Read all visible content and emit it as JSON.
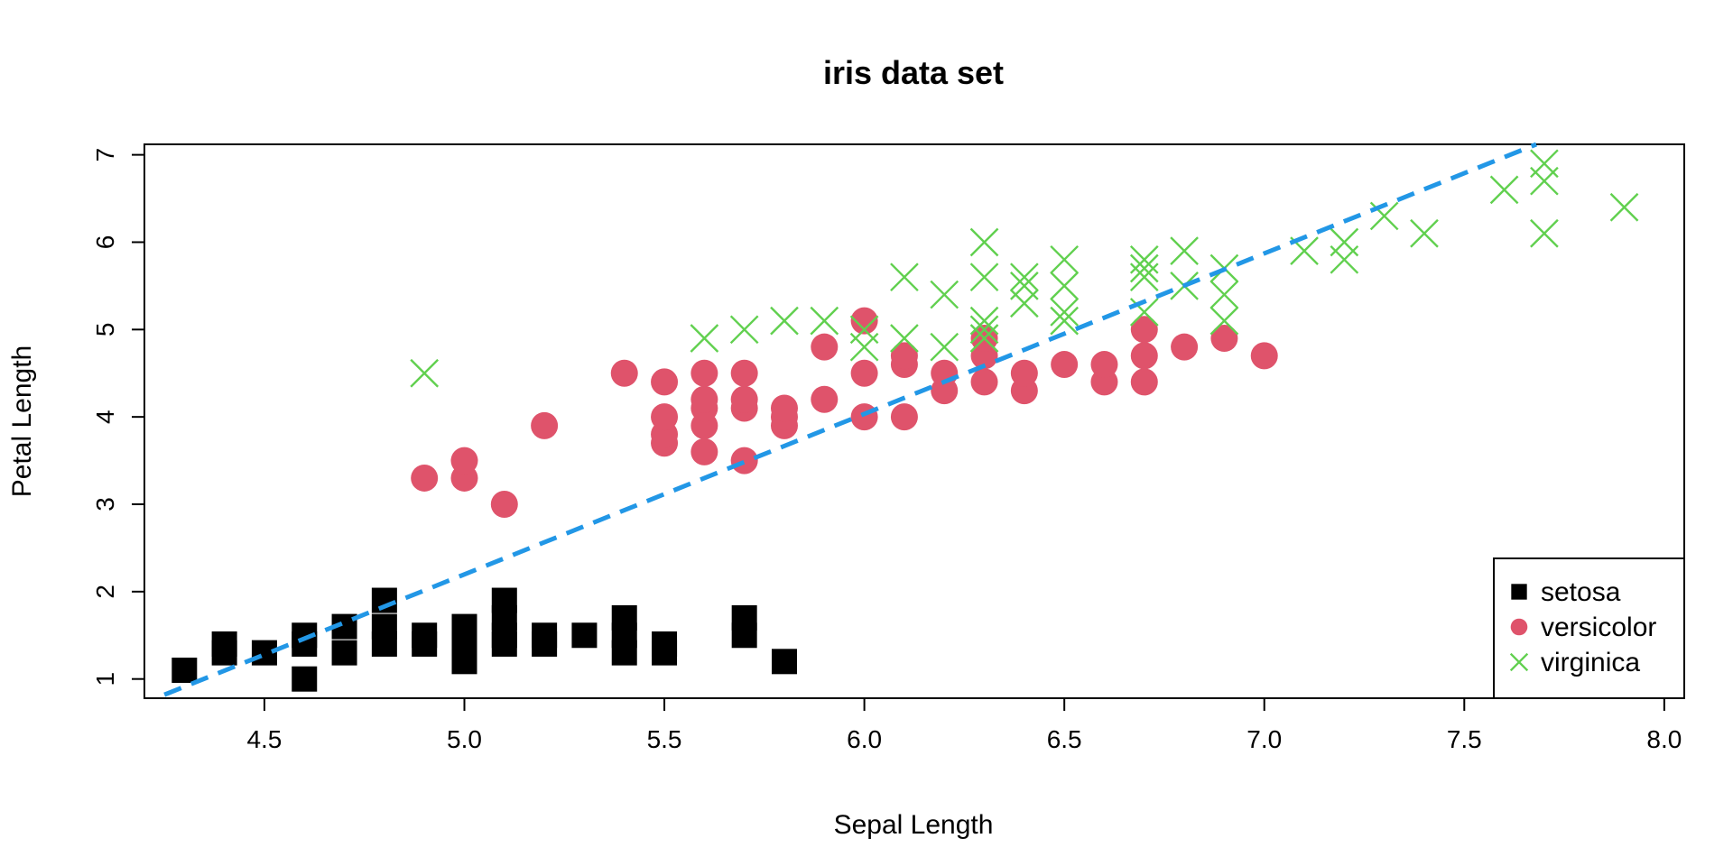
{
  "chart_data": {
    "type": "scatter",
    "title": "iris data set",
    "xlabel": "Sepal Length",
    "ylabel": "Petal Length",
    "xlim": [
      4.2,
      8.05
    ],
    "ylim": [
      0.78,
      7.12
    ],
    "xticks": [
      "4.5",
      "5.0",
      "5.5",
      "6.0",
      "6.5",
      "7.0",
      "7.5",
      "8.0"
    ],
    "yticks": [
      "1",
      "2",
      "3",
      "4",
      "5",
      "6",
      "7"
    ],
    "grid": false,
    "legend_position": "bottom-right",
    "series": [
      {
        "name": "setosa",
        "marker": "square",
        "color": "#000000",
        "points": [
          [
            4.3,
            1.1
          ],
          [
            4.4,
            1.3
          ],
          [
            4.4,
            1.4
          ],
          [
            4.5,
            1.3
          ],
          [
            4.6,
            1.0
          ],
          [
            4.6,
            1.4
          ],
          [
            4.6,
            1.5
          ],
          [
            4.7,
            1.3
          ],
          [
            4.7,
            1.6
          ],
          [
            4.8,
            1.4
          ],
          [
            4.8,
            1.6
          ],
          [
            4.8,
            1.9
          ],
          [
            4.9,
            1.4
          ],
          [
            4.9,
            1.5
          ],
          [
            5.0,
            1.2
          ],
          [
            5.0,
            1.4
          ],
          [
            5.0,
            1.6
          ],
          [
            5.1,
            1.4
          ],
          [
            5.1,
            1.5
          ],
          [
            5.1,
            1.7
          ],
          [
            5.1,
            1.9
          ],
          [
            5.2,
            1.4
          ],
          [
            5.2,
            1.5
          ],
          [
            5.3,
            1.5
          ],
          [
            5.4,
            1.3
          ],
          [
            5.4,
            1.5
          ],
          [
            5.4,
            1.7
          ],
          [
            5.5,
            1.3
          ],
          [
            5.5,
            1.4
          ],
          [
            5.7,
            1.5
          ],
          [
            5.7,
            1.7
          ],
          [
            5.8,
            1.2
          ]
        ]
      },
      {
        "name": "versicolor",
        "marker": "circle",
        "color": "#DF536B",
        "points": [
          [
            4.9,
            3.3
          ],
          [
            5.0,
            3.3
          ],
          [
            5.0,
            3.5
          ],
          [
            5.1,
            3.0
          ],
          [
            5.2,
            3.9
          ],
          [
            5.4,
            4.5
          ],
          [
            5.5,
            3.7
          ],
          [
            5.5,
            3.8
          ],
          [
            5.5,
            4.0
          ],
          [
            5.5,
            4.4
          ],
          [
            5.6,
            3.6
          ],
          [
            5.6,
            3.9
          ],
          [
            5.6,
            4.1
          ],
          [
            5.6,
            4.2
          ],
          [
            5.6,
            4.5
          ],
          [
            5.7,
            3.5
          ],
          [
            5.7,
            4.1
          ],
          [
            5.7,
            4.2
          ],
          [
            5.7,
            4.5
          ],
          [
            5.8,
            3.9
          ],
          [
            5.8,
            4.0
          ],
          [
            5.8,
            4.1
          ],
          [
            5.9,
            4.2
          ],
          [
            5.9,
            4.8
          ],
          [
            6.0,
            4.0
          ],
          [
            6.0,
            4.5
          ],
          [
            6.0,
            5.1
          ],
          [
            6.1,
            4.0
          ],
          [
            6.1,
            4.6
          ],
          [
            6.1,
            4.7
          ],
          [
            6.2,
            4.3
          ],
          [
            6.2,
            4.5
          ],
          [
            6.3,
            4.4
          ],
          [
            6.3,
            4.7
          ],
          [
            6.3,
            4.9
          ],
          [
            6.4,
            4.3
          ],
          [
            6.4,
            4.5
          ],
          [
            6.5,
            4.6
          ],
          [
            6.6,
            4.4
          ],
          [
            6.6,
            4.6
          ],
          [
            6.7,
            4.4
          ],
          [
            6.7,
            4.7
          ],
          [
            6.7,
            5.0
          ],
          [
            6.8,
            4.8
          ],
          [
            6.9,
            4.9
          ],
          [
            7.0,
            4.7
          ]
        ]
      },
      {
        "name": "virginica",
        "marker": "cross",
        "color": "#61D04F",
        "points": [
          [
            4.9,
            4.5
          ],
          [
            5.6,
            4.9
          ],
          [
            5.7,
            5.0
          ],
          [
            5.8,
            5.1
          ],
          [
            5.9,
            5.1
          ],
          [
            6.0,
            4.8
          ],
          [
            6.0,
            5.0
          ],
          [
            6.1,
            4.9
          ],
          [
            6.1,
            5.6
          ],
          [
            6.2,
            4.8
          ],
          [
            6.2,
            5.4
          ],
          [
            6.3,
            4.9
          ],
          [
            6.3,
            5.0
          ],
          [
            6.3,
            5.1
          ],
          [
            6.3,
            5.6
          ],
          [
            6.3,
            6.0
          ],
          [
            6.4,
            5.3
          ],
          [
            6.4,
            5.5
          ],
          [
            6.4,
            5.6
          ],
          [
            6.5,
            5.1
          ],
          [
            6.5,
            5.2
          ],
          [
            6.5,
            5.5
          ],
          [
            6.5,
            5.8
          ],
          [
            6.7,
            5.2
          ],
          [
            6.7,
            5.6
          ],
          [
            6.7,
            5.7
          ],
          [
            6.7,
            5.8
          ],
          [
            6.8,
            5.5
          ],
          [
            6.8,
            5.9
          ],
          [
            6.9,
            5.1
          ],
          [
            6.9,
            5.4
          ],
          [
            6.9,
            5.7
          ],
          [
            7.1,
            5.9
          ],
          [
            7.2,
            5.8
          ],
          [
            7.2,
            6.0
          ],
          [
            7.3,
            6.3
          ],
          [
            7.4,
            6.1
          ],
          [
            7.6,
            6.6
          ],
          [
            7.7,
            6.1
          ],
          [
            7.7,
            6.7
          ],
          [
            7.7,
            6.9
          ],
          [
            7.9,
            6.4
          ]
        ]
      }
    ],
    "trendline": {
      "style": "dashed",
      "color": "#2297E6",
      "from": [
        4.25,
        0.82
      ],
      "to": [
        7.68,
        7.12
      ]
    },
    "legend": [
      {
        "label": "setosa",
        "marker": "square",
        "color": "#000000"
      },
      {
        "label": "versicolor",
        "marker": "circle",
        "color": "#DF536B"
      },
      {
        "label": "virginica",
        "marker": "cross",
        "color": "#61D04F"
      }
    ]
  }
}
